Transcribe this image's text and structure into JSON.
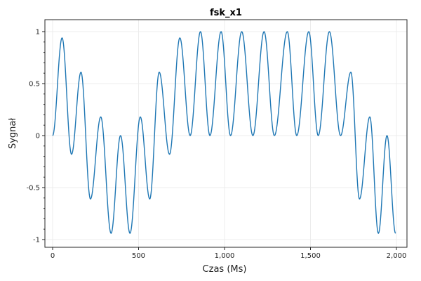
{
  "chart_data": {
    "type": "line",
    "title": "fsk_x1",
    "xlabel": "Czas (Ms)",
    "ylabel": "Sygnał",
    "xlim": [
      0,
      2000
    ],
    "ylim": [
      -1,
      1
    ],
    "grid": true,
    "x_ticks": [
      0,
      500,
      1000,
      1500,
      2000
    ],
    "x_tick_labels": [
      "0",
      "500",
      "1,000",
      "1,500",
      "2,000"
    ],
    "y_ticks": [
      1,
      0.5,
      0,
      -0.5,
      -1
    ],
    "y_tick_labels": [
      "1",
      "0.5",
      "0",
      "-0.5",
      "-1"
    ],
    "series": [
      {
        "color": "#1f77b4",
        "points": [
          [
            0,
            0
          ],
          [
            55,
            0.94
          ],
          [
            110,
            -0.18
          ],
          [
            165,
            0.61
          ],
          [
            220,
            -0.61
          ],
          [
            280,
            0.18
          ],
          [
            340,
            -0.94
          ],
          [
            395,
            0
          ],
          [
            450,
            -0.94
          ],
          [
            510,
            0.18
          ],
          [
            565,
            -0.61
          ],
          [
            620,
            0.61
          ],
          [
            680,
            -0.18
          ],
          [
            740,
            0.94
          ],
          [
            800,
            0
          ],
          [
            860,
            1
          ],
          [
            915,
            0
          ],
          [
            980,
            1
          ],
          [
            1035,
            0
          ],
          [
            1100,
            1
          ],
          [
            1165,
            0
          ],
          [
            1230,
            1
          ],
          [
            1290,
            0
          ],
          [
            1365,
            1
          ],
          [
            1420,
            0
          ],
          [
            1490,
            1
          ],
          [
            1545,
            0
          ],
          [
            1610,
            1
          ],
          [
            1675,
            0
          ],
          [
            1735,
            0.61
          ],
          [
            1785,
            -0.61
          ],
          [
            1845,
            0.18
          ],
          [
            1895,
            -0.94
          ],
          [
            1945,
            0
          ],
          [
            1995,
            -0.94
          ]
        ]
      }
    ]
  }
}
